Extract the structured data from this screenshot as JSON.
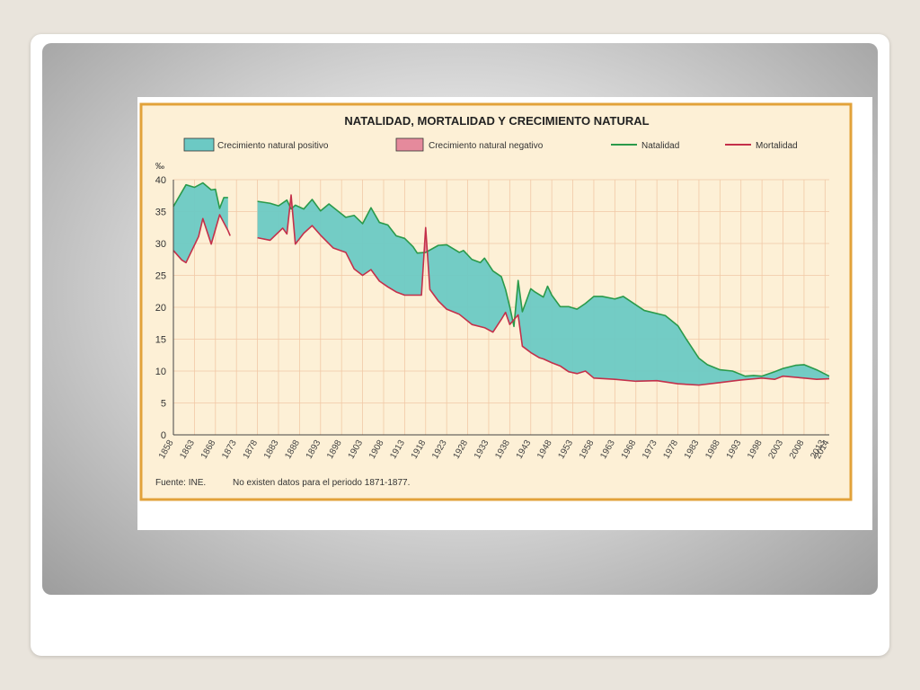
{
  "chart_data": {
    "type": "area",
    "title": "NATALIDAD, MORTALIDAD Y CRECIMIENTO NATURAL",
    "ylabel": "‰",
    "xlabel": "",
    "ylim": [
      0,
      40
    ],
    "yticks": [
      0,
      5,
      10,
      15,
      20,
      25,
      30,
      35,
      40
    ],
    "xlim": [
      1858,
      2014
    ],
    "xticks": [
      "1858",
      "1863",
      "1868",
      "1873",
      "1878",
      "1883",
      "1888",
      "1893",
      "1898",
      "1903",
      "1908",
      "1913",
      "1918",
      "1923",
      "1928",
      "1933",
      "1938",
      "1943",
      "1948",
      "1953",
      "1958",
      "1963",
      "1968",
      "1973",
      "1978",
      "1983",
      "1988",
      "1993",
      "1998",
      "2003",
      "2008",
      "2013",
      "2014"
    ],
    "grid": true,
    "legend_position": "top",
    "legend": [
      {
        "label": "Crecimiento natural positivo",
        "kind": "area",
        "color": "#6cc9c4"
      },
      {
        "label": "Crecimiento natural negativo",
        "kind": "area",
        "color": "#e58a9c"
      },
      {
        "label": "Natalidad",
        "kind": "line",
        "color": "#2a9a4a"
      },
      {
        "label": "Mortalidad",
        "kind": "line",
        "color": "#c4304a"
      }
    ],
    "source_note": "Fuente: INE.",
    "gap_note": "No existen datos para el periodo 1871-1877.",
    "series": [
      {
        "name": "Natalidad",
        "segments": [
          [
            [
              1858,
              35.8
            ],
            [
              1861,
              39.2
            ],
            [
              1863,
              38.8
            ],
            [
              1865,
              39.5
            ],
            [
              1867,
              38.4
            ],
            [
              1868,
              38.5
            ],
            [
              1869,
              35.5
            ],
            [
              1870,
              37.2
            ],
            [
              1871,
              37.2
            ]
          ],
          [
            [
              1878,
              36.6
            ],
            [
              1881,
              36.3
            ],
            [
              1883,
              35.9
            ],
            [
              1885,
              36.8
            ],
            [
              1886,
              35.4
            ],
            [
              1887,
              36.0
            ],
            [
              1889,
              35.4
            ],
            [
              1891,
              36.9
            ],
            [
              1893,
              35.1
            ],
            [
              1895,
              36.2
            ],
            [
              1899,
              34.1
            ],
            [
              1901,
              34.4
            ],
            [
              1903,
              33.1
            ],
            [
              1905,
              35.6
            ],
            [
              1907,
              33.3
            ],
            [
              1909,
              32.9
            ],
            [
              1911,
              31.2
            ],
            [
              1913,
              30.8
            ],
            [
              1915,
              29.5
            ],
            [
              1916,
              28.5
            ],
            [
              1918,
              28.6
            ],
            [
              1921,
              29.7
            ],
            [
              1923,
              29.8
            ],
            [
              1926,
              28.6
            ],
            [
              1927,
              28.9
            ],
            [
              1929,
              27.5
            ],
            [
              1931,
              27.0
            ],
            [
              1932,
              27.7
            ],
            [
              1934,
              25.7
            ],
            [
              1936,
              24.8
            ],
            [
              1937,
              22.8
            ],
            [
              1938,
              20.1
            ],
            [
              1939,
              17.0
            ],
            [
              1940,
              24.2
            ],
            [
              1941,
              19.3
            ],
            [
              1943,
              22.9
            ],
            [
              1944,
              22.4
            ],
            [
              1946,
              21.6
            ],
            [
              1947,
              23.3
            ],
            [
              1948,
              21.9
            ],
            [
              1950,
              20.1
            ],
            [
              1952,
              20.1
            ],
            [
              1954,
              19.7
            ],
            [
              1956,
              20.6
            ],
            [
              1958,
              21.7
            ],
            [
              1960,
              21.7
            ],
            [
              1963,
              21.3
            ],
            [
              1965,
              21.7
            ],
            [
              1970,
              19.5
            ],
            [
              1975,
              18.7
            ],
            [
              1978,
              17.1
            ],
            [
              1980,
              15.0
            ],
            [
              1983,
              12.0
            ],
            [
              1985,
              11.0
            ],
            [
              1988,
              10.2
            ],
            [
              1991,
              10.0
            ],
            [
              1994,
              9.2
            ],
            [
              1996,
              9.3
            ],
            [
              1998,
              9.2
            ],
            [
              2001,
              9.9
            ],
            [
              2003,
              10.4
            ],
            [
              2006,
              10.9
            ],
            [
              2008,
              11.0
            ],
            [
              2011,
              10.2
            ],
            [
              2014,
              9.2
            ]
          ]
        ]
      },
      {
        "name": "Mortalidad",
        "segments": [
          [
            [
              1858,
              28.9
            ],
            [
              1860,
              27.4
            ],
            [
              1861,
              27.0
            ],
            [
              1864,
              31.1
            ],
            [
              1865,
              33.9
            ],
            [
              1867,
              29.9
            ],
            [
              1869,
              34.5
            ],
            [
              1871,
              32.0
            ],
            [
              1871.5,
              31.2
            ]
          ],
          [
            [
              1878,
              30.9
            ],
            [
              1881,
              30.5
            ],
            [
              1884,
              32.4
            ],
            [
              1885,
              31.5
            ],
            [
              1886,
              37.6
            ],
            [
              1887,
              29.9
            ],
            [
              1889,
              31.6
            ],
            [
              1891,
              32.8
            ],
            [
              1893,
              31.3
            ],
            [
              1896,
              29.3
            ],
            [
              1899,
              28.6
            ],
            [
              1901,
              26.0
            ],
            [
              1903,
              25.0
            ],
            [
              1905,
              25.9
            ],
            [
              1907,
              24.1
            ],
            [
              1909,
              23.2
            ],
            [
              1911,
              22.4
            ],
            [
              1913,
              21.9
            ],
            [
              1917,
              21.9
            ],
            [
              1918,
              32.5
            ],
            [
              1919,
              22.8
            ],
            [
              1921,
              21.0
            ],
            [
              1923,
              19.7
            ],
            [
              1926,
              18.9
            ],
            [
              1929,
              17.3
            ],
            [
              1932,
              16.8
            ],
            [
              1934,
              16.1
            ],
            [
              1936,
              18.1
            ],
            [
              1937,
              19.2
            ],
            [
              1938,
              17.3
            ],
            [
              1940,
              18.8
            ],
            [
              1941,
              13.9
            ],
            [
              1943,
              12.9
            ],
            [
              1945,
              12.1
            ],
            [
              1946,
              11.9
            ],
            [
              1948,
              11.3
            ],
            [
              1950,
              10.8
            ],
            [
              1952,
              9.9
            ],
            [
              1954,
              9.6
            ],
            [
              1956,
              10.0
            ],
            [
              1958,
              8.9
            ],
            [
              1963,
              8.7
            ],
            [
              1968,
              8.4
            ],
            [
              1973,
              8.5
            ],
            [
              1978,
              8.0
            ],
            [
              1983,
              7.8
            ],
            [
              1988,
              8.2
            ],
            [
              1993,
              8.6
            ],
            [
              1998,
              8.9
            ],
            [
              2001,
              8.7
            ],
            [
              2003,
              9.2
            ],
            [
              2008,
              8.9
            ],
            [
              2011,
              8.7
            ],
            [
              2014,
              8.8
            ]
          ]
        ]
      }
    ]
  }
}
